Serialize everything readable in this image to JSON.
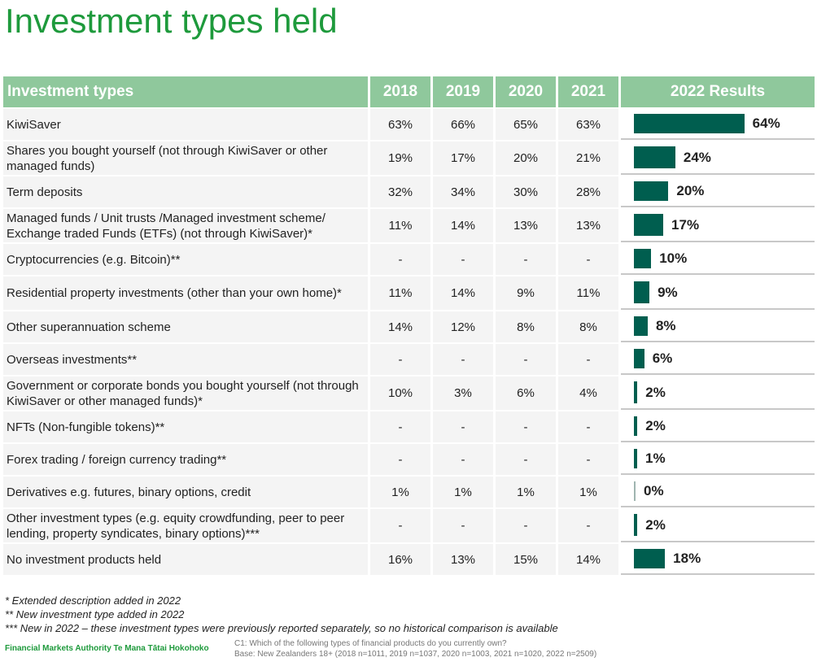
{
  "title": "Investment types held",
  "chart_data": {
    "type": "table",
    "columns": [
      "Investment types",
      "2018",
      "2019",
      "2020",
      "2021",
      "2022 Results"
    ],
    "rows": [
      {
        "label": "KiwiSaver",
        "hist": [
          "63%",
          "66%",
          "65%",
          "63%"
        ],
        "v2022": 64,
        "label2022": "64%"
      },
      {
        "label": "Shares you bought yourself (not through KiwiSaver or other managed funds)",
        "hist": [
          "19%",
          "17%",
          "20%",
          "21%"
        ],
        "v2022": 24,
        "label2022": "24%"
      },
      {
        "label": "Term deposits",
        "hist": [
          "32%",
          "34%",
          "30%",
          "28%"
        ],
        "v2022": 20,
        "label2022": "20%"
      },
      {
        "label": "Managed funds / Unit trusts /Managed investment scheme/ Exchange traded Funds (ETFs) (not through KiwiSaver)*",
        "hist": [
          "11%",
          "14%",
          "13%",
          "13%"
        ],
        "v2022": 17,
        "label2022": "17%"
      },
      {
        "label": "Cryptocurrencies (e.g. Bitcoin)**",
        "hist": [
          "-",
          "-",
          "-",
          "-"
        ],
        "v2022": 10,
        "label2022": "10%"
      },
      {
        "label": "Residential property investments (other than your own home)*",
        "hist": [
          "11%",
          "14%",
          "9%",
          "11%"
        ],
        "v2022": 9,
        "label2022": "9%"
      },
      {
        "label": "Other superannuation scheme",
        "hist": [
          "14%",
          "12%",
          "8%",
          "8%"
        ],
        "v2022": 8,
        "label2022": "8%"
      },
      {
        "label": "Overseas investments**",
        "hist": [
          "-",
          "-",
          "-",
          "-"
        ],
        "v2022": 6,
        "label2022": "6%"
      },
      {
        "label": "Government or corporate bonds you bought yourself (not through KiwiSaver or other managed funds)*",
        "hist": [
          "10%",
          "3%",
          "6%",
          "4%"
        ],
        "v2022": 2,
        "label2022": "2%"
      },
      {
        "label": "NFTs (Non-fungible tokens)**",
        "hist": [
          "-",
          "-",
          "-",
          "-"
        ],
        "v2022": 2,
        "label2022": "2%"
      },
      {
        "label": "Forex trading / foreign currency trading**",
        "hist": [
          "-",
          "-",
          "-",
          "-"
        ],
        "v2022": 1,
        "label2022": "1%"
      },
      {
        "label": "Derivatives e.g. futures, binary options, credit",
        "hist": [
          "1%",
          "1%",
          "1%",
          "1%"
        ],
        "v2022": 0,
        "label2022": "0%"
      },
      {
        "label": "Other investment types (e.g. equity crowdfunding, peer to peer lending, property syndicates, binary options)***",
        "hist": [
          "-",
          "-",
          "-",
          "-"
        ],
        "v2022": 2,
        "label2022": "2%"
      },
      {
        "label": "No investment products held",
        "hist": [
          "16%",
          "13%",
          "15%",
          "14%"
        ],
        "v2022": 18,
        "label2022": "18%"
      }
    ],
    "colors": {
      "header": "#8fc89c",
      "bar": "#005e4f",
      "title": "#1e9a3c"
    }
  },
  "footnotes": [
    "* Extended description added in 2022",
    "** New investment type added in 2022",
    "*** New in 2022 – these investment types were previously reported separately, so no historical comparison is available"
  ],
  "brand": "Financial Markets Authority Te Mana Tātai Hokohoko",
  "source": [
    "C1: Which of the following types of financial products do you currently own?",
    "Base: New Zealanders 18+ (2018 n=1011, 2019 n=1037, 2020 n=1003, 2021 n=1020, 2022 n=2509)"
  ]
}
